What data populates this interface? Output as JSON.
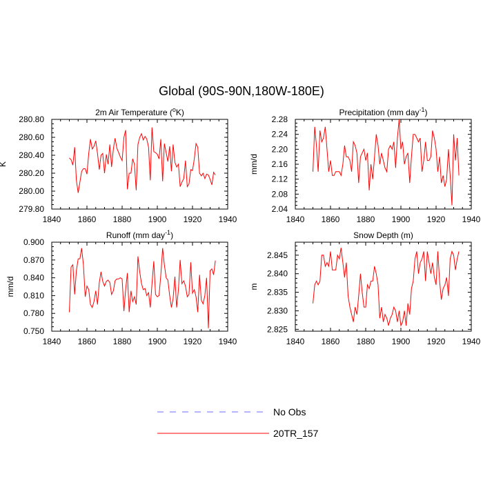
{
  "title": "Global (90S-90N,180W-180E)",
  "colors": {
    "model": "#ff0000",
    "obs": "#6a6aff",
    "axis": "#000000"
  },
  "legend": [
    {
      "label": "No Obs",
      "style": "dashed",
      "color": "#6a6aff"
    },
    {
      "label": "20TR_157",
      "style": "solid",
      "color": "#ff0000"
    }
  ],
  "chart_data": [
    {
      "type": "line",
      "title": "2m Air Temperature (°K)",
      "title_main": "2m Air Temperature (",
      "title_sup": "o",
      "title_end": "K)",
      "ylabel": "K",
      "xlim": [
        1840,
        1940
      ],
      "ylim": [
        279.8,
        280.8
      ],
      "xticks": [
        1840,
        1860,
        1880,
        1900,
        1920,
        1940
      ],
      "yticks": [
        279.8,
        280.0,
        280.2,
        280.4,
        280.6,
        280.8
      ],
      "ytick_labels": [
        "279.80",
        "280.00",
        "280.20",
        "280.40",
        "280.60",
        "280.80"
      ],
      "x_start": 1850,
      "series": [
        {
          "name": "20TR_157",
          "values": [
            280.37,
            280.35,
            280.29,
            280.49,
            280.12,
            279.98,
            280.1,
            280.22,
            280.25,
            280.25,
            280.19,
            280.42,
            280.58,
            280.47,
            280.5,
            280.56,
            280.42,
            280.24,
            280.4,
            280.42,
            280.2,
            280.41,
            280.3,
            280.52,
            280.27,
            280.47,
            280.59,
            280.48,
            280.43,
            280.38,
            280.34,
            280.6,
            280.68,
            280.02,
            280.2,
            280.2,
            280.36,
            280.3,
            280.01,
            280.52,
            280.6,
            280.64,
            280.57,
            280.61,
            280.58,
            280.49,
            280.12,
            280.71,
            280.44,
            280.43,
            280.41,
            280.36,
            280.58,
            280.11,
            280.53,
            280.43,
            280.33,
            280.5,
            280.22,
            280.52,
            280.32,
            280.27,
            280.3,
            280.05,
            280.1,
            280.14,
            280.34,
            280.05,
            280.08,
            280.24,
            280.23,
            280.36,
            280.53,
            280.49,
            280.2,
            280.17,
            280.2,
            280.14,
            280.19,
            280.18,
            280.13,
            280.07,
            280.21,
            280.18
          ]
        }
      ]
    },
    {
      "type": "line",
      "title": "Precipitation (mm day-1)",
      "title_main": "Precipitation (mm day",
      "title_sup": "-1",
      "title_end": ")",
      "ylabel": "mm/d",
      "xlim": [
        1840,
        1940
      ],
      "ylim": [
        2.04,
        2.28
      ],
      "xticks": [
        1840,
        1860,
        1880,
        1900,
        1920,
        1940
      ],
      "yticks": [
        2.04,
        2.08,
        2.12,
        2.16,
        2.2,
        2.24,
        2.28
      ],
      "ytick_labels": [
        "2.04",
        "2.08",
        "2.12",
        "2.16",
        "2.20",
        "2.24",
        "2.28"
      ],
      "x_start": 1850,
      "series": [
        {
          "name": "20TR_157",
          "values": [
            2.14,
            2.26,
            2.21,
            2.14,
            2.25,
            2.22,
            2.23,
            2.26,
            2.2,
            2.14,
            2.17,
            2.13,
            2.13,
            2.14,
            2.14,
            2.14,
            2.13,
            2.16,
            2.21,
            2.18,
            2.18,
            2.17,
            2.14,
            2.22,
            2.21,
            2.19,
            2.11,
            2.18,
            2.19,
            2.2,
            2.17,
            2.19,
            2.09,
            2.16,
            2.12,
            2.18,
            2.24,
            2.21,
            2.16,
            2.19,
            2.17,
            2.15,
            2.14,
            2.2,
            2.21,
            2.2,
            2.22,
            2.15,
            2.23,
            2.28,
            2.2,
            2.22,
            2.16,
            2.18,
            2.19,
            2.11,
            2.18,
            2.24,
            2.24,
            2.23,
            2.22,
            2.23,
            2.14,
            2.17,
            2.22,
            2.17,
            2.17,
            2.18,
            2.25,
            2.23,
            2.2,
            2.14,
            2.18,
            2.11,
            2.13,
            2.1,
            2.12,
            2.2,
            2.13,
            2.05,
            2.24,
            2.17,
            2.23,
            2.13
          ]
        }
      ]
    },
    {
      "type": "line",
      "title": "Runoff (mm day-1)",
      "title_main": "Runoff (mm day",
      "title_sup": "-1",
      "title_end": ")",
      "ylabel": "mm/d",
      "xlim": [
        1840,
        1940
      ],
      "ylim": [
        0.75,
        0.9
      ],
      "xticks": [
        1840,
        1860,
        1880,
        1900,
        1920,
        1940
      ],
      "yticks": [
        0.75,
        0.78,
        0.81,
        0.84,
        0.87,
        0.9
      ],
      "ytick_labels": [
        "0.750",
        "0.780",
        "0.810",
        "0.840",
        "0.870",
        "0.900"
      ],
      "x_start": 1850,
      "series": [
        {
          "name": "20TR_157",
          "values": [
            0.782,
            0.858,
            0.862,
            0.812,
            0.852,
            0.872,
            0.872,
            0.89,
            0.862,
            0.808,
            0.826,
            0.82,
            0.795,
            0.79,
            0.8,
            0.818,
            0.795,
            0.832,
            0.85,
            0.834,
            0.826,
            0.834,
            0.836,
            0.832,
            0.812,
            0.818,
            0.835,
            0.838,
            0.838,
            0.84,
            0.838,
            0.784,
            0.82,
            0.848,
            0.782,
            0.818,
            0.8,
            0.808,
            0.795,
            0.876,
            0.85,
            0.83,
            0.82,
            0.822,
            0.81,
            0.815,
            0.79,
            0.83,
            0.868,
            0.812,
            0.808,
            0.81,
            0.845,
            0.89,
            0.862,
            0.84,
            0.836,
            0.81,
            0.79,
            0.805,
            0.842,
            0.79,
            0.82,
            0.87,
            0.83,
            0.835,
            0.826,
            0.808,
            0.812,
            0.866,
            0.814,
            0.82,
            0.808,
            0.782,
            0.845,
            0.802,
            0.796,
            0.81,
            0.84,
            0.755,
            0.852,
            0.855,
            0.845,
            0.869
          ]
        }
      ]
    },
    {
      "type": "line",
      "title": "Snow Depth (m)",
      "title_main": "Snow Depth (m)",
      "title_sup": "",
      "title_end": "",
      "ylabel": "m",
      "xlim": [
        1840,
        1940
      ],
      "ylim": [
        2.8245,
        2.8485
      ],
      "xticks": [
        1840,
        1860,
        1880,
        1900,
        1920,
        1940
      ],
      "yticks": [
        2.825,
        2.83,
        2.835,
        2.84,
        2.845
      ],
      "ytick_labels": [
        "2.825",
        "2.830",
        "2.835",
        "2.840",
        "2.845"
      ],
      "x_start": 1850,
      "series": [
        {
          "name": "20TR_157",
          "values": [
            2.832,
            2.837,
            2.838,
            2.837,
            2.838,
            2.845,
            2.845,
            2.842,
            2.843,
            2.842,
            2.846,
            2.841,
            2.841,
            2.841,
            2.845,
            2.844,
            2.847,
            2.843,
            2.839,
            2.843,
            2.834,
            2.831,
            2.829,
            2.827,
            2.831,
            2.829,
            2.834,
            2.84,
            2.835,
            2.831,
            2.831,
            2.837,
            2.836,
            2.838,
            2.838,
            2.842,
            2.84,
            2.837,
            2.828,
            2.831,
            2.827,
            2.829,
            2.828,
            2.826,
            2.828,
            2.829,
            2.831,
            2.83,
            2.827,
            2.83,
            2.826,
            2.827,
            2.83,
            2.826,
            2.832,
            2.829,
            2.836,
            2.838,
            2.844,
            2.846,
            2.84,
            2.843,
            2.844,
            2.846,
            2.838,
            2.846,
            2.843,
            2.84,
            2.843,
            2.839,
            2.837,
            2.846,
            2.838,
            2.833,
            2.836,
            2.837,
            2.839,
            2.834,
            2.844,
            2.846,
            2.845,
            2.841,
            2.844,
            2.846
          ]
        }
      ]
    }
  ]
}
